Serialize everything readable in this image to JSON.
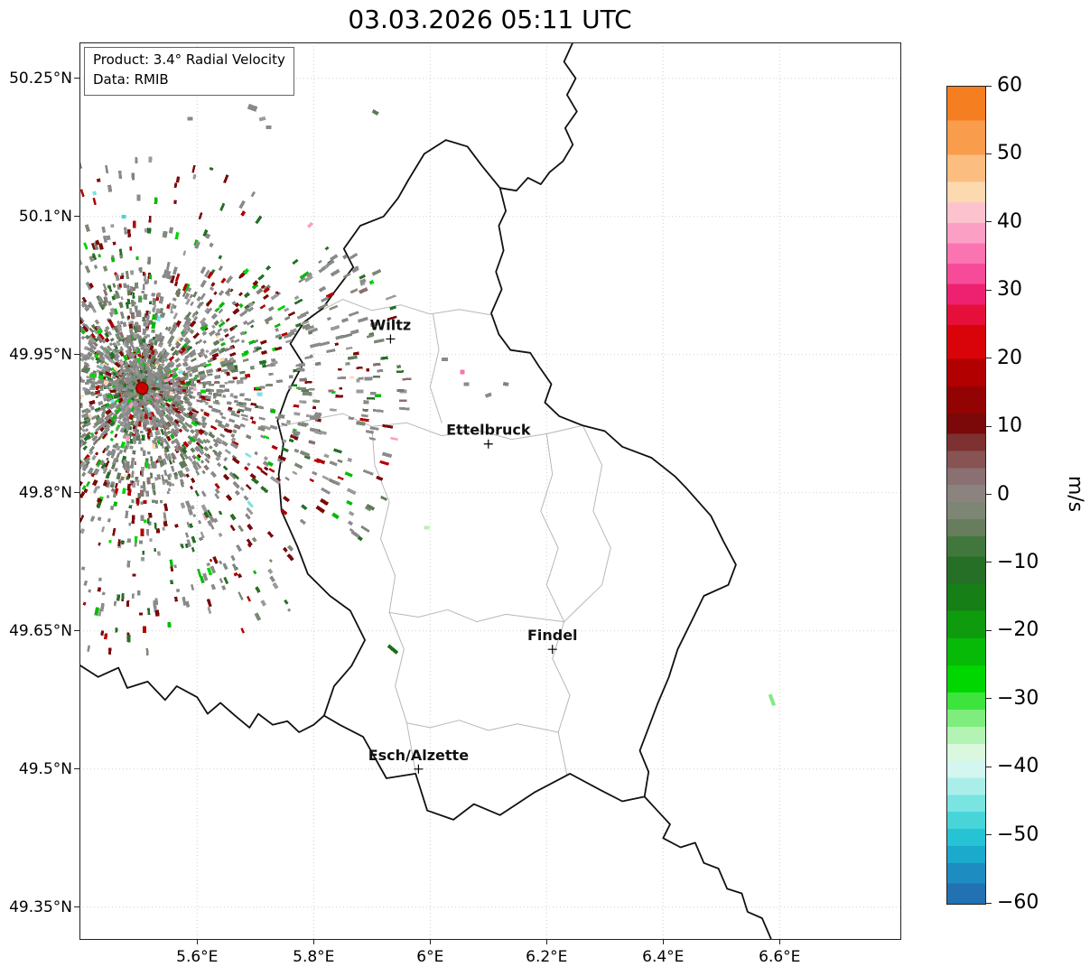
{
  "title": "03.03.2026 05:11 UTC",
  "info_box": {
    "product": "Product: 3.4° Radial Velocity",
    "source": "Data: RMIB"
  },
  "axes": {
    "lat_ticks": [
      {
        "label": "50.25°N",
        "value": 50.25
      },
      {
        "label": "50.1°N",
        "value": 50.1
      },
      {
        "label": "49.95°N",
        "value": 49.95
      },
      {
        "label": "49.8°N",
        "value": 49.8
      },
      {
        "label": "49.65°N",
        "value": 49.65
      },
      {
        "label": "49.5°N",
        "value": 49.5
      },
      {
        "label": "49.35°N",
        "value": 49.35
      }
    ],
    "lon_ticks": [
      {
        "label": "5.6°E",
        "value": 5.6
      },
      {
        "label": "5.8°E",
        "value": 5.8
      },
      {
        "label": "6°E",
        "value": 6.0
      },
      {
        "label": "6.2°E",
        "value": 6.2
      },
      {
        "label": "6.4°E",
        "value": 6.4
      },
      {
        "label": "6.6°E",
        "value": 6.6
      }
    ]
  },
  "colorbar": {
    "label": "m/s",
    "vmin": -60,
    "vmax": 60,
    "ticks": [
      {
        "label": "60",
        "value": 60
      },
      {
        "label": "50",
        "value": 50
      },
      {
        "label": "40",
        "value": 40
      },
      {
        "label": "30",
        "value": 30
      },
      {
        "label": "20",
        "value": 20
      },
      {
        "label": "10",
        "value": 10
      },
      {
        "label": "0",
        "value": 0
      },
      {
        "label": "−10",
        "value": -10
      },
      {
        "label": "−20",
        "value": -20
      },
      {
        "label": "−30",
        "value": -30
      },
      {
        "label": "−40",
        "value": -40
      },
      {
        "label": "−50",
        "value": -50
      },
      {
        "label": "−60",
        "value": -60
      }
    ],
    "bands": [
      {
        "f": 60,
        "t": 55,
        "c": "#f57e20"
      },
      {
        "f": 55,
        "t": 50,
        "c": "#f99d4c"
      },
      {
        "f": 50,
        "t": 46,
        "c": "#fbbe80"
      },
      {
        "f": 46,
        "t": 43,
        "c": "#fdd9b0"
      },
      {
        "f": 43,
        "t": 40,
        "c": "#fcc3ce"
      },
      {
        "f": 40,
        "t": 37,
        "c": "#fb9fc5"
      },
      {
        "f": 37,
        "t": 34,
        "c": "#f974b1"
      },
      {
        "f": 34,
        "t": 31,
        "c": "#f64b98"
      },
      {
        "f": 31,
        "t": 28,
        "c": "#ee2170"
      },
      {
        "f": 28,
        "t": 25,
        "c": "#e60f3a"
      },
      {
        "f": 25,
        "t": 20,
        "c": "#d90409"
      },
      {
        "f": 20,
        "t": 16,
        "c": "#b20000"
      },
      {
        "f": 16,
        "t": 12,
        "c": "#940303"
      },
      {
        "f": 12,
        "t": 9,
        "c": "#7b0909"
      },
      {
        "f": 9,
        "t": 6.5,
        "c": "#7e3131"
      },
      {
        "f": 6.5,
        "t": 4,
        "c": "#875353"
      },
      {
        "f": 4,
        "t": 1.5,
        "c": "#8a7070"
      },
      {
        "f": 1.5,
        "t": -1,
        "c": "#8b8380"
      },
      {
        "f": -1,
        "t": -3.5,
        "c": "#7d8674"
      },
      {
        "f": -3.5,
        "t": -6,
        "c": "#677d5d"
      },
      {
        "f": -6,
        "t": -9,
        "c": "#41773d"
      },
      {
        "f": -9,
        "t": -13,
        "c": "#266f26"
      },
      {
        "f": -13,
        "t": -17,
        "c": "#167f16"
      },
      {
        "f": -17,
        "t": -21,
        "c": "#0e9b0e"
      },
      {
        "f": -21,
        "t": -25,
        "c": "#07ba07"
      },
      {
        "f": -25,
        "t": -29,
        "c": "#00d700"
      },
      {
        "f": -29,
        "t": -31.5,
        "c": "#3de43d"
      },
      {
        "f": -31.5,
        "t": -34,
        "c": "#7eed7e"
      },
      {
        "f": -34,
        "t": -36.5,
        "c": "#b3f3b3"
      },
      {
        "f": -36.5,
        "t": -39,
        "c": "#d9f8dd"
      },
      {
        "f": -39,
        "t": -41.5,
        "c": "#d3f6f0"
      },
      {
        "f": -41.5,
        "t": -44,
        "c": "#aaeeea"
      },
      {
        "f": -44,
        "t": -46.5,
        "c": "#7ae4e2"
      },
      {
        "f": -46.5,
        "t": -49,
        "c": "#47d5da"
      },
      {
        "f": -49,
        "t": -51.5,
        "c": "#26c3d5"
      },
      {
        "f": -51.5,
        "t": -54,
        "c": "#1ba9cc"
      },
      {
        "f": -54,
        "t": -57,
        "c": "#1d8dc1"
      },
      {
        "f": -57,
        "t": -60,
        "c": "#2171b3"
      }
    ]
  },
  "map": {
    "extent": {
      "lon_min": 5.398,
      "lon_max": 6.8073,
      "lat_min": 49.3155,
      "lat_max": 50.289
    },
    "country_border_color": "#111111",
    "canton_border_color": "#b8b8b8",
    "cities": [
      {
        "name": "Wiltz",
        "lon": 5.932,
        "lat": 49.967
      },
      {
        "name": "Ettelbruck",
        "lon": 6.1,
        "lat": 49.853
      },
      {
        "name": "Findel",
        "lon": 6.21,
        "lat": 49.63
      },
      {
        "name": "Esch/Alzette",
        "lon": 5.98,
        "lat": 49.5
      }
    ],
    "radar_site": {
      "lon": 5.5055,
      "lat": 49.9135,
      "fill": "#cc0000",
      "stroke": "#7a0808"
    },
    "country_borders": [
      [
        [
          6.027,
          50.183
        ],
        [
          6.064,
          50.176
        ],
        [
          6.089,
          50.155
        ],
        [
          6.12,
          50.131
        ],
        [
          6.13,
          50.106
        ],
        [
          6.118,
          50.09
        ],
        [
          6.126,
          50.063
        ],
        [
          6.113,
          50.04
        ],
        [
          6.123,
          50.021
        ],
        [
          6.105,
          49.995
        ],
        [
          6.118,
          49.972
        ],
        [
          6.138,
          49.955
        ],
        [
          6.172,
          49.952
        ],
        [
          6.186,
          49.938
        ],
        [
          6.208,
          49.918
        ],
        [
          6.197,
          49.898
        ],
        [
          6.222,
          49.883
        ],
        [
          6.262,
          49.873
        ],
        [
          6.3,
          49.867
        ],
        [
          6.33,
          49.85
        ],
        [
          6.38,
          49.838
        ],
        [
          6.42,
          49.818
        ],
        [
          6.44,
          49.805
        ],
        [
          6.482,
          49.775
        ],
        [
          6.503,
          49.748
        ],
        [
          6.525,
          49.722
        ],
        [
          6.512,
          49.7
        ],
        [
          6.47,
          49.688
        ],
        [
          6.45,
          49.662
        ],
        [
          6.425,
          49.63
        ],
        [
          6.41,
          49.6
        ],
        [
          6.39,
          49.57
        ],
        [
          6.375,
          49.545
        ],
        [
          6.36,
          49.52
        ],
        [
          6.375,
          49.497
        ],
        [
          6.368,
          49.47
        ],
        [
          6.33,
          49.465
        ],
        [
          6.29,
          49.478
        ],
        [
          6.24,
          49.495
        ],
        [
          6.18,
          49.475
        ],
        [
          6.12,
          49.45
        ],
        [
          6.075,
          49.462
        ],
        [
          6.04,
          49.445
        ],
        [
          5.995,
          49.455
        ],
        [
          5.975,
          49.495
        ],
        [
          5.925,
          49.49
        ],
        [
          5.885,
          49.535
        ],
        [
          5.845,
          49.548
        ],
        [
          5.818,
          49.558
        ],
        [
          5.835,
          49.59
        ],
        [
          5.865,
          49.612
        ],
        [
          5.888,
          49.64
        ],
        [
          5.863,
          49.672
        ],
        [
          5.828,
          49.688
        ],
        [
          5.79,
          49.712
        ],
        [
          5.772,
          49.742
        ],
        [
          5.745,
          49.78
        ],
        [
          5.74,
          49.82
        ],
        [
          5.748,
          49.853
        ],
        [
          5.738,
          49.878
        ],
        [
          5.755,
          49.908
        ],
        [
          5.782,
          49.94
        ],
        [
          5.76,
          49.962
        ],
        [
          5.783,
          49.985
        ],
        [
          5.815,
          50.0
        ],
        [
          5.838,
          50.02
        ],
        [
          5.868,
          50.045
        ],
        [
          5.852,
          50.065
        ],
        [
          5.88,
          50.09
        ],
        [
          5.92,
          50.1
        ],
        [
          5.945,
          50.12
        ],
        [
          5.963,
          50.14
        ],
        [
          5.99,
          50.168
        ],
        [
          6.027,
          50.183
        ]
      ],
      [
        [
          6.245,
          50.289
        ],
        [
          6.23,
          50.268
        ],
        [
          6.25,
          50.25
        ],
        [
          6.235,
          50.232
        ],
        [
          6.252,
          50.214
        ],
        [
          6.232,
          50.196
        ],
        [
          6.245,
          50.178
        ],
        [
          6.228,
          50.16
        ],
        [
          6.205,
          50.148
        ],
        [
          6.19,
          50.135
        ],
        [
          6.168,
          50.142
        ],
        [
          6.148,
          50.128
        ],
        [
          6.12,
          50.131
        ]
      ],
      [
        [
          5.398,
          49.613
        ],
        [
          5.43,
          49.6
        ],
        [
          5.465,
          49.61
        ],
        [
          5.48,
          49.588
        ],
        [
          5.515,
          49.595
        ],
        [
          5.545,
          49.575
        ],
        [
          5.565,
          49.59
        ],
        [
          5.6,
          49.578
        ],
        [
          5.618,
          49.56
        ],
        [
          5.64,
          49.572
        ],
        [
          5.665,
          49.558
        ],
        [
          5.69,
          49.545
        ],
        [
          5.705,
          49.56
        ],
        [
          5.73,
          49.548
        ],
        [
          5.755,
          49.552
        ],
        [
          5.775,
          49.54
        ],
        [
          5.8,
          49.548
        ],
        [
          5.818,
          49.558
        ]
      ],
      [
        [
          6.368,
          49.47
        ],
        [
          6.39,
          49.455
        ],
        [
          6.412,
          49.44
        ],
        [
          6.4,
          49.425
        ],
        [
          6.43,
          49.415
        ],
        [
          6.455,
          49.42
        ],
        [
          6.47,
          49.398
        ],
        [
          6.495,
          49.392
        ],
        [
          6.51,
          49.37
        ],
        [
          6.535,
          49.365
        ],
        [
          6.545,
          49.345
        ],
        [
          6.57,
          49.338
        ],
        [
          6.585,
          49.316
        ]
      ]
    ],
    "canton_borders": [
      [
        [
          5.795,
          49.992
        ],
        [
          5.85,
          50.01
        ],
        [
          5.9,
          49.998
        ],
        [
          5.95,
          50.004
        ],
        [
          6.0,
          49.994
        ],
        [
          6.05,
          49.999
        ],
        [
          6.105,
          49.993
        ]
      ],
      [
        [
          5.742,
          49.872
        ],
        [
          5.8,
          49.88
        ],
        [
          5.85,
          49.886
        ],
        [
          5.9,
          49.872
        ],
        [
          5.96,
          49.876
        ],
        [
          6.02,
          49.862
        ],
        [
          6.08,
          49.868
        ],
        [
          6.14,
          49.858
        ],
        [
          6.2,
          49.864
        ],
        [
          6.262,
          49.873
        ]
      ],
      [
        [
          5.9,
          49.872
        ],
        [
          5.905,
          49.83
        ],
        [
          5.93,
          49.79
        ],
        [
          5.915,
          49.75
        ],
        [
          5.94,
          49.71
        ],
        [
          5.93,
          49.67
        ],
        [
          5.955,
          49.63
        ],
        [
          5.94,
          49.59
        ],
        [
          5.96,
          49.55
        ],
        [
          5.975,
          49.497
        ]
      ],
      [
        [
          6.2,
          49.864
        ],
        [
          6.21,
          49.82
        ],
        [
          6.19,
          49.78
        ],
        [
          6.22,
          49.74
        ],
        [
          6.2,
          49.7
        ],
        [
          6.23,
          49.66
        ],
        [
          6.21,
          49.62
        ],
        [
          6.24,
          49.58
        ],
        [
          6.22,
          49.54
        ],
        [
          6.235,
          49.493
        ]
      ],
      [
        [
          5.93,
          49.67
        ],
        [
          5.98,
          49.665
        ],
        [
          6.03,
          49.673
        ],
        [
          6.08,
          49.66
        ],
        [
          6.13,
          49.668
        ],
        [
          6.23,
          49.66
        ]
      ],
      [
        [
          5.96,
          49.55
        ],
        [
          6.0,
          49.545
        ],
        [
          6.05,
          49.553
        ],
        [
          6.1,
          49.542
        ],
        [
          6.15,
          49.549
        ],
        [
          6.22,
          49.54
        ]
      ],
      [
        [
          6.005,
          49.994
        ],
        [
          6.015,
          49.955
        ],
        [
          6.0,
          49.915
        ],
        [
          6.02,
          49.876
        ]
      ],
      [
        [
          6.262,
          49.873
        ],
        [
          6.295,
          49.83
        ],
        [
          6.28,
          49.78
        ],
        [
          6.31,
          49.74
        ],
        [
          6.295,
          49.7
        ],
        [
          6.23,
          49.66
        ]
      ]
    ],
    "echo_outliers": [
      {
        "lon": 5.695,
        "lat": 50.218,
        "c": "#8a8a8a",
        "l": 10,
        "w": 6,
        "rot": 20
      },
      {
        "lon": 5.712,
        "lat": 50.206,
        "c": "#9b9b9b",
        "l": 7,
        "w": 4,
        "rot": -15
      },
      {
        "lon": 5.723,
        "lat": 50.197,
        "c": "#8a8a8a",
        "l": 6,
        "w": 4,
        "rot": 0
      },
      {
        "lon": 5.588,
        "lat": 50.206,
        "c": "#8a8a8a",
        "l": 6,
        "w": 4,
        "rot": 0
      },
      {
        "lon": 5.906,
        "lat": 50.213,
        "c": "#5f7a58",
        "l": 7,
        "w": 4,
        "rot": 30
      },
      {
        "lon": 6.055,
        "lat": 49.931,
        "c": "#f974b1",
        "l": 5,
        "w": 5,
        "rot": 0
      },
      {
        "lon": 6.025,
        "lat": 49.945,
        "c": "#8a8a8a",
        "l": 7,
        "w": 4,
        "rot": 0
      },
      {
        "lon": 6.1,
        "lat": 49.906,
        "c": "#8a8a8a",
        "l": 7,
        "w": 4,
        "rot": -20
      },
      {
        "lon": 6.13,
        "lat": 49.918,
        "c": "#7c8876",
        "l": 6,
        "w": 4,
        "rot": 10
      },
      {
        "lon": 6.062,
        "lat": 49.918,
        "c": "#8a8a8a",
        "l": 6,
        "w": 4,
        "rot": 0
      },
      {
        "lon": 5.936,
        "lat": 49.63,
        "c": "#1c6e1c",
        "l": 13,
        "w": 4,
        "rot": 40
      },
      {
        "lon": 6.587,
        "lat": 49.575,
        "c": "#7eed7e",
        "l": 13,
        "w": 4,
        "rot": 70
      },
      {
        "lon": 5.994,
        "lat": 49.762,
        "c": "#b3f3b3",
        "l": 6,
        "w": 4,
        "rot": 0
      },
      {
        "lon": 5.474,
        "lat": 50.1,
        "c": "#47d5da",
        "l": 5,
        "w": 4,
        "rot": 0
      }
    ]
  },
  "scatter": {
    "seed": 1337,
    "center": {
      "lon": 5.5055,
      "lat": 49.9135
    },
    "rings": [
      {
        "r0": 2,
        "r1": 60,
        "n": 1500,
        "l0": 3,
        "l1": 7,
        "pal": 0
      },
      {
        "r0": 60,
        "r1": 120,
        "n": 950,
        "l0": 3,
        "l1": 8,
        "pal": 0
      },
      {
        "r0": 120,
        "r1": 185,
        "n": 520,
        "l0": 3,
        "l1": 9,
        "pal": 1
      },
      {
        "r0": 185,
        "r1": 262,
        "n": 190,
        "l0": 3,
        "l1": 10,
        "pal": 1
      },
      {
        "r0": 170,
        "r1": 295,
        "n": 130,
        "a0": -35,
        "a1": 35,
        "l0": 4,
        "l1": 12,
        "pal": 0
      },
      {
        "r0": 200,
        "r1": 300,
        "n": 70,
        "a0": 55,
        "a1": 125,
        "l0": 3,
        "l1": 9,
        "pal": 1
      }
    ],
    "palettes": [
      [
        {
          "c": "#8a8a8a",
          "w": 0.37
        },
        {
          "c": "#9b9b9b",
          "w": 0.12
        },
        {
          "c": "#7c8876",
          "w": 0.16
        },
        {
          "c": "#5f7a58",
          "w": 0.08
        },
        {
          "c": "#8a7070",
          "w": 0.06
        },
        {
          "c": "#7b0909",
          "w": 0.06
        },
        {
          "c": "#b20000",
          "w": 0.025
        },
        {
          "c": "#266f26",
          "w": 0.06
        },
        {
          "c": "#07ba07",
          "w": 0.03
        },
        {
          "c": "#00d700",
          "w": 0.015
        },
        {
          "c": "#7ae4e2",
          "w": 0.006
        },
        {
          "c": "#fb9fc5",
          "w": 0.005
        },
        {
          "c": "#fdd9b0",
          "w": 0.004
        }
      ],
      [
        {
          "c": "#8a8a8a",
          "w": 0.29
        },
        {
          "c": "#9b9b9b",
          "w": 0.09
        },
        {
          "c": "#7c8876",
          "w": 0.12
        },
        {
          "c": "#7b0909",
          "w": 0.21
        },
        {
          "c": "#b20000",
          "w": 0.06
        },
        {
          "c": "#266f26",
          "w": 0.13
        },
        {
          "c": "#07ba07",
          "w": 0.06
        },
        {
          "c": "#00d700",
          "w": 0.02
        },
        {
          "c": "#7ae4e2",
          "w": 0.01
        },
        {
          "c": "#fb9fc5",
          "w": 0.01
        }
      ]
    ]
  }
}
